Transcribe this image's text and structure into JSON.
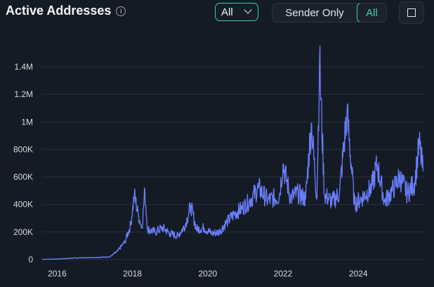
{
  "header": {
    "title": "Active Addresses",
    "info_icon": "info-icon",
    "dropdown_value": "All",
    "segment": {
      "options": [
        "Sender Only",
        "All"
      ],
      "selected": "All"
    },
    "expand_icon": "expand-icon"
  },
  "colors": {
    "background": "#151b24",
    "series": "#6b7fff",
    "accent": "#3ecfa6",
    "grid": "#26313c"
  },
  "chart_data": {
    "type": "line",
    "title": "Active Addresses",
    "xlabel": "",
    "ylabel": "",
    "x_ticks": [
      "2016",
      "2018",
      "2020",
      "2022",
      "2024"
    ],
    "y_ticks": [
      "0",
      "200K",
      "400K",
      "600K",
      "800K",
      "1M",
      "1.2M",
      "1.4M"
    ],
    "xlim": [
      2015.6,
      2025.75
    ],
    "ylim": [
      0,
      1400000
    ],
    "grid": true,
    "series": [
      {
        "values": [
          [
            2015.6,
            2000
          ],
          [
            2016.0,
            4000
          ],
          [
            2016.5,
            12000
          ],
          [
            2017.0,
            15000
          ],
          [
            2017.4,
            20000
          ],
          [
            2017.6,
            60000
          ],
          [
            2017.8,
            130000
          ],
          [
            2017.95,
            250000
          ],
          [
            2018.05,
            470000
          ],
          [
            2018.15,
            330000
          ],
          [
            2018.25,
            230000
          ],
          [
            2018.33,
            500000
          ],
          [
            2018.4,
            220000
          ],
          [
            2018.6,
            200000
          ],
          [
            2018.8,
            230000
          ],
          [
            2019.0,
            190000
          ],
          [
            2019.2,
            170000
          ],
          [
            2019.4,
            250000
          ],
          [
            2019.55,
            390000
          ],
          [
            2019.7,
            220000
          ],
          [
            2019.9,
            230000
          ],
          [
            2020.1,
            190000
          ],
          [
            2020.3,
            200000
          ],
          [
            2020.5,
            270000
          ],
          [
            2020.7,
            330000
          ],
          [
            2020.9,
            370000
          ],
          [
            2021.1,
            420000
          ],
          [
            2021.35,
            520000
          ],
          [
            2021.6,
            430000
          ],
          [
            2021.9,
            460000
          ],
          [
            2022.0,
            690000
          ],
          [
            2022.2,
            450000
          ],
          [
            2022.4,
            480000
          ],
          [
            2022.6,
            440000
          ],
          [
            2022.75,
            990000
          ],
          [
            2022.9,
            450000
          ],
          [
            2022.97,
            1440000
          ],
          [
            2023.1,
            470000
          ],
          [
            2023.3,
            420000
          ],
          [
            2023.5,
            480000
          ],
          [
            2023.7,
            1070000
          ],
          [
            2023.9,
            400000
          ],
          [
            2024.1,
            450000
          ],
          [
            2024.35,
            520000
          ],
          [
            2024.5,
            690000
          ],
          [
            2024.7,
            420000
          ],
          [
            2024.9,
            500000
          ],
          [
            2025.1,
            600000
          ],
          [
            2025.3,
            480000
          ],
          [
            2025.5,
            560000
          ],
          [
            2025.62,
            840000
          ],
          [
            2025.72,
            640000
          ]
        ]
      }
    ]
  }
}
